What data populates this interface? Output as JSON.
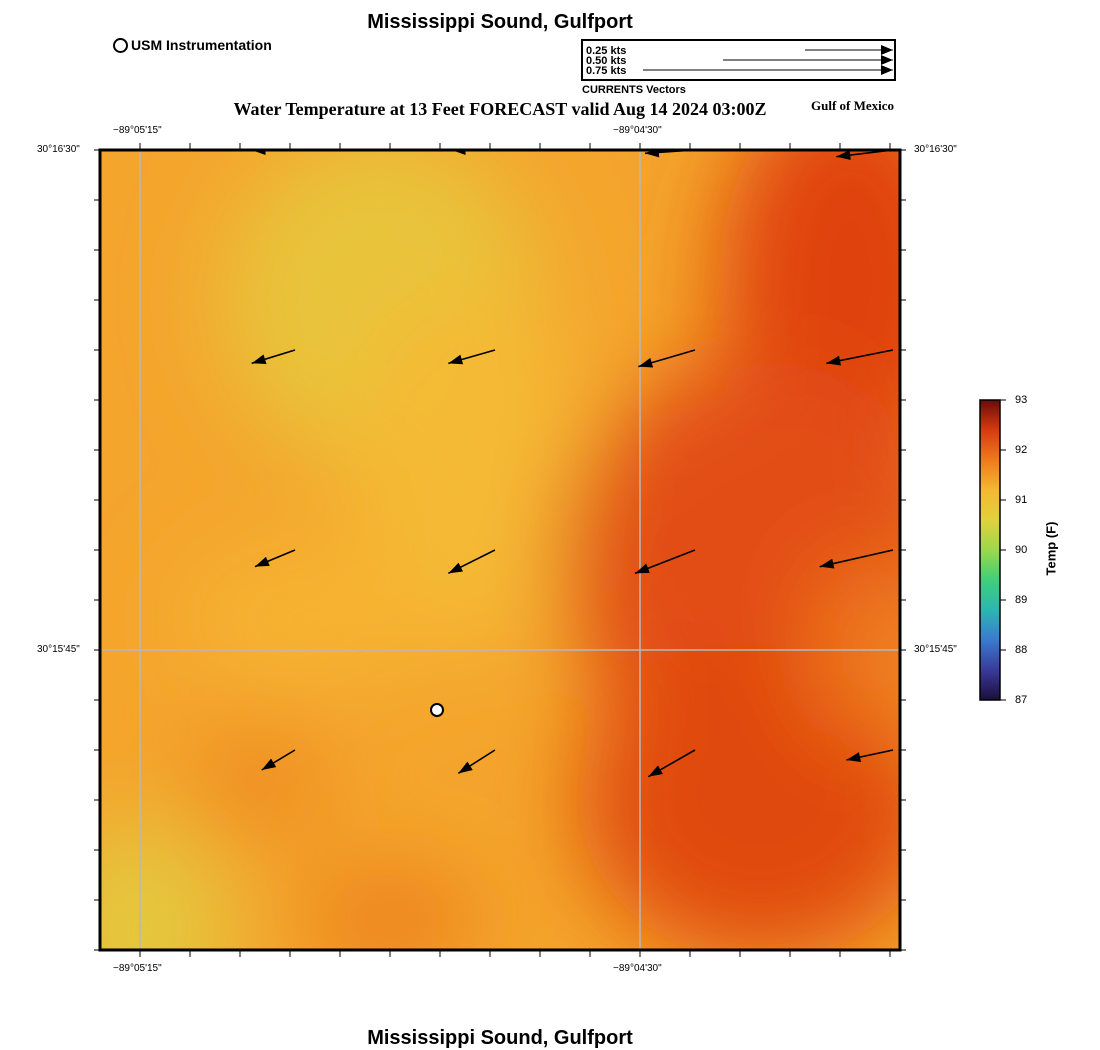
{
  "header": {
    "title": "Mississippi Sound, Gulfport",
    "subtitle": "Water Temperature at 13 Feet FORECAST valid Aug 14 2024 03:00Z",
    "region": "Gulf of Mexico",
    "footer_title": "Mississippi Sound, Gulfport"
  },
  "legend": {
    "station_label": "USM Instrumentation",
    "vector_caption": "CURRENTS Vectors",
    "vector_scale": [
      {
        "label": "0.25 kts",
        "speed_kts": 0.25
      },
      {
        "label": "0.50 kts",
        "speed_kts": 0.5
      },
      {
        "label": "0.75 kts",
        "speed_kts": 0.75
      }
    ]
  },
  "map": {
    "lon_ticks": [
      "−89°05'15\"",
      "−89°04'30\""
    ],
    "lat_ticks": [
      "30°16'30\"",
      "30°15'45\""
    ],
    "gridlines": true
  },
  "colorbar": {
    "title": "Temp (F)",
    "ticks": [
      "93",
      "92",
      "91",
      "90",
      "89",
      "88",
      "87"
    ],
    "min": 87,
    "max": 93,
    "colors": [
      "#6b0a0a",
      "#d73a0f",
      "#f07a1a",
      "#f5b830",
      "#e0d23a",
      "#9cd84a",
      "#3fcf7a",
      "#2ab7b0",
      "#3a7ad0",
      "#3a3a9a",
      "#1a0f3a"
    ]
  },
  "station": {
    "name": "USM Instrumentation"
  },
  "currents": {
    "units": "kts",
    "vectors": [
      {
        "row": 0,
        "col": 0,
        "u": -0.13,
        "v": 0.0
      },
      {
        "row": 0,
        "col": 1,
        "u": -0.13,
        "v": 0.0
      },
      {
        "row": 0,
        "col": 2,
        "u": -0.15,
        "v": -0.01
      },
      {
        "row": 0,
        "col": 3,
        "u": -0.17,
        "v": -0.02
      },
      {
        "row": 1,
        "col": 0,
        "u": -0.13,
        "v": -0.04
      },
      {
        "row": 1,
        "col": 1,
        "u": -0.14,
        "v": -0.04
      },
      {
        "row": 1,
        "col": 2,
        "u": -0.17,
        "v": -0.05
      },
      {
        "row": 1,
        "col": 3,
        "u": -0.2,
        "v": -0.04
      },
      {
        "row": 2,
        "col": 0,
        "u": -0.12,
        "v": -0.05
      },
      {
        "row": 2,
        "col": 1,
        "u": -0.14,
        "v": -0.07
      },
      {
        "row": 2,
        "col": 2,
        "u": -0.18,
        "v": -0.07
      },
      {
        "row": 2,
        "col": 3,
        "u": -0.22,
        "v": -0.05
      },
      {
        "row": 3,
        "col": 0,
        "u": -0.1,
        "v": -0.06
      },
      {
        "row": 3,
        "col": 1,
        "u": -0.11,
        "v": -0.07
      },
      {
        "row": 3,
        "col": 2,
        "u": -0.14,
        "v": -0.08
      },
      {
        "row": 3,
        "col": 3,
        "u": -0.14,
        "v": -0.03
      }
    ]
  }
}
